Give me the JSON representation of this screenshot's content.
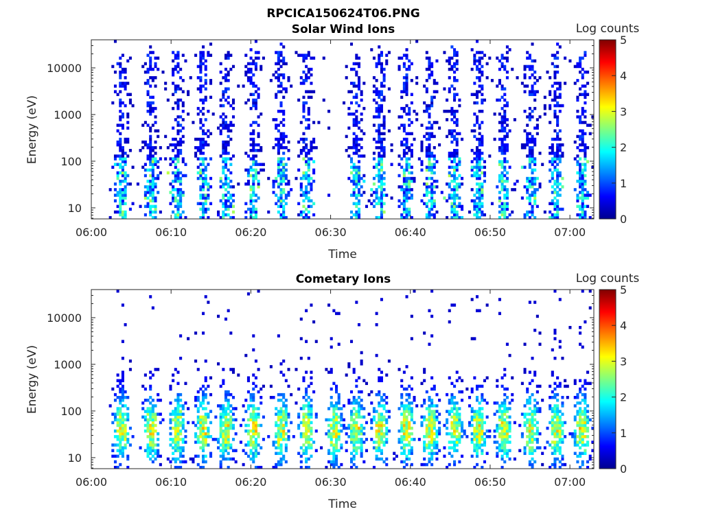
{
  "figure": {
    "title": "RPCICA150624T06.PNG"
  },
  "colormap": {
    "name": "jet",
    "stops": [
      "#00008f",
      "#0000ff",
      "#0080ff",
      "#00ffff",
      "#80ff80",
      "#ffff00",
      "#ff8000",
      "#ff0000",
      "#800000"
    ]
  },
  "chart_data": [
    {
      "type": "heatmap",
      "title": "Solar Wind Ions",
      "xlabel": "Time",
      "ylabel": "Energy (eV)",
      "x_ticks": [
        "06:00",
        "06:10",
        "06:20",
        "06:30",
        "06:40",
        "06:50",
        "07:00"
      ],
      "x_tick_minutes": [
        0,
        10,
        20,
        30,
        40,
        50,
        60
      ],
      "xlim_minutes": [
        0,
        63
      ],
      "y_ticks": [
        "10",
        "100",
        "1000",
        "10000"
      ],
      "y_tick_values": [
        10,
        100,
        1000,
        10000
      ],
      "ylim_ev": [
        5.8,
        40000
      ],
      "y_scale": "log",
      "colorbar": {
        "label": "Log counts",
        "range": [
          0,
          5
        ],
        "ticks": [
          "0",
          "1",
          "2",
          "3",
          "4",
          "5"
        ]
      },
      "bursts_minutes": [
        3.8,
        7.5,
        10.8,
        14.0,
        16.9,
        20.3,
        23.8,
        27.0,
        33.2,
        36.2,
        39.5,
        42.5,
        45.5,
        48.5,
        51.7,
        55.1,
        58.3,
        61.5
      ],
      "approx_max_log_counts": 2.8
    },
    {
      "type": "heatmap",
      "title": "Cometary Ions",
      "xlabel": "Time",
      "ylabel": "Energy (eV)",
      "x_ticks": [
        "06:00",
        "06:10",
        "06:20",
        "06:30",
        "06:40",
        "06:50",
        "07:00"
      ],
      "x_tick_minutes": [
        0,
        10,
        20,
        30,
        40,
        50,
        60
      ],
      "xlim_minutes": [
        0,
        63
      ],
      "y_ticks": [
        "10",
        "100",
        "1000",
        "10000"
      ],
      "y_tick_values": [
        10,
        100,
        1000,
        10000
      ],
      "ylim_ev": [
        5.8,
        40000
      ],
      "y_scale": "log",
      "colorbar": {
        "label": "Log counts",
        "range": [
          0,
          5
        ],
        "ticks": [
          "0",
          "1",
          "2",
          "3",
          "4",
          "5"
        ]
      },
      "bursts_minutes": [
        3.8,
        7.5,
        10.8,
        14.0,
        16.9,
        20.3,
        23.8,
        27.0,
        30.5,
        33.2,
        36.2,
        39.5,
        42.5,
        45.5,
        48.5,
        51.7,
        55.1,
        58.3,
        61.5
      ],
      "approx_max_log_counts": 3.6
    }
  ]
}
